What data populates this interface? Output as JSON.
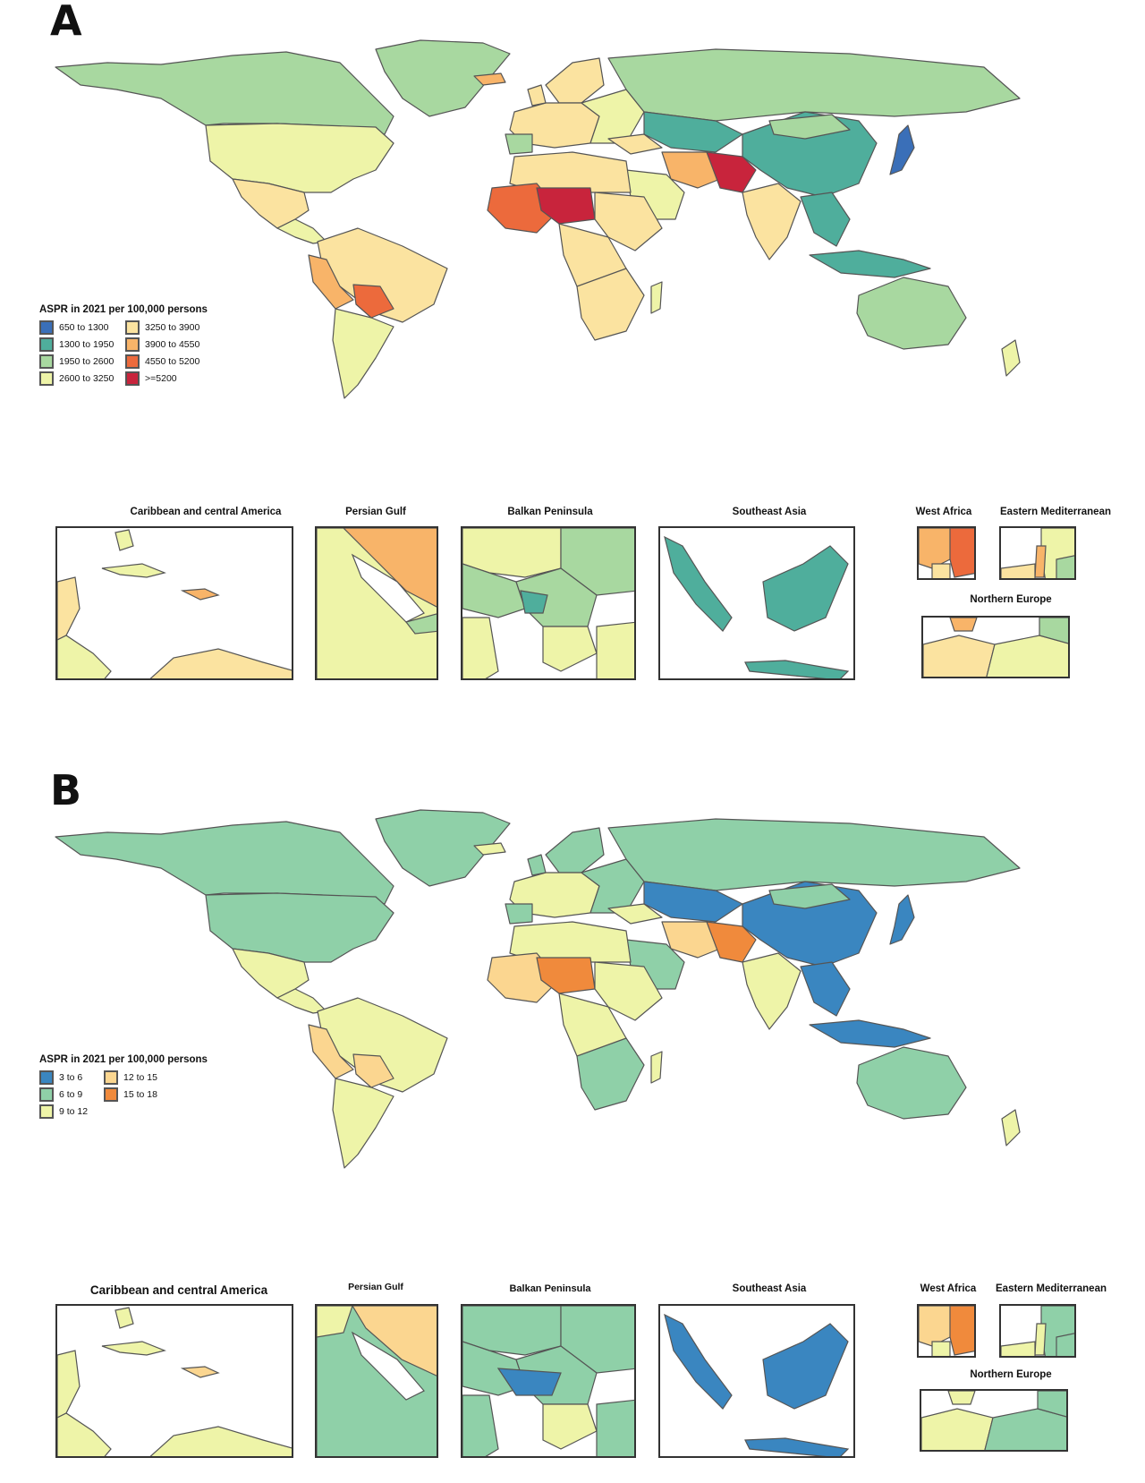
{
  "panels": [
    {
      "letter": "A",
      "legend_title": "ASPR in 2021 per 100,000 persons",
      "legend": [
        {
          "label": "650 to 1300",
          "color": "#3a6fb8"
        },
        {
          "label": "1300 to 1950",
          "color": "#4fae9c"
        },
        {
          "label": "1950 to 2600",
          "color": "#a8d8a0"
        },
        {
          "label": "2600 to 3250",
          "color": "#eef4a8"
        },
        {
          "label": "3250 to 3900",
          "color": "#fbe3a0"
        },
        {
          "label": "3900 to 4550",
          "color": "#f8b469"
        },
        {
          "label": "4550 to 5200",
          "color": "#ec6a3c"
        },
        {
          "label": ">=5200",
          "color": "#c8243c"
        }
      ],
      "insets": [
        "Caribbean and central America",
        "Persian Gulf",
        "Balkan Peninsula",
        "Southeast Asia",
        "West Africa",
        "Eastern Mediterranean",
        "Northern Europe"
      ]
    },
    {
      "letter": "B",
      "legend_title": "ASPR in 2021 per 100,000 persons",
      "legend": [
        {
          "label": "3 to 6",
          "color": "#3a86c0"
        },
        {
          "label": "6 to 9",
          "color": "#8fd0a8"
        },
        {
          "label": "9 to 12",
          "color": "#eef4a8"
        },
        {
          "label": "12 to 15",
          "color": "#fbd690"
        },
        {
          "label": "15 to 18",
          "color": "#f08a3c"
        }
      ],
      "insets": [
        "Caribbean and central America",
        "Persian Gulf",
        "Balkan Peninsula",
        "Southeast Asia",
        "West Africa",
        "Eastern Mediterranean",
        "Northern Europe"
      ]
    }
  ]
}
